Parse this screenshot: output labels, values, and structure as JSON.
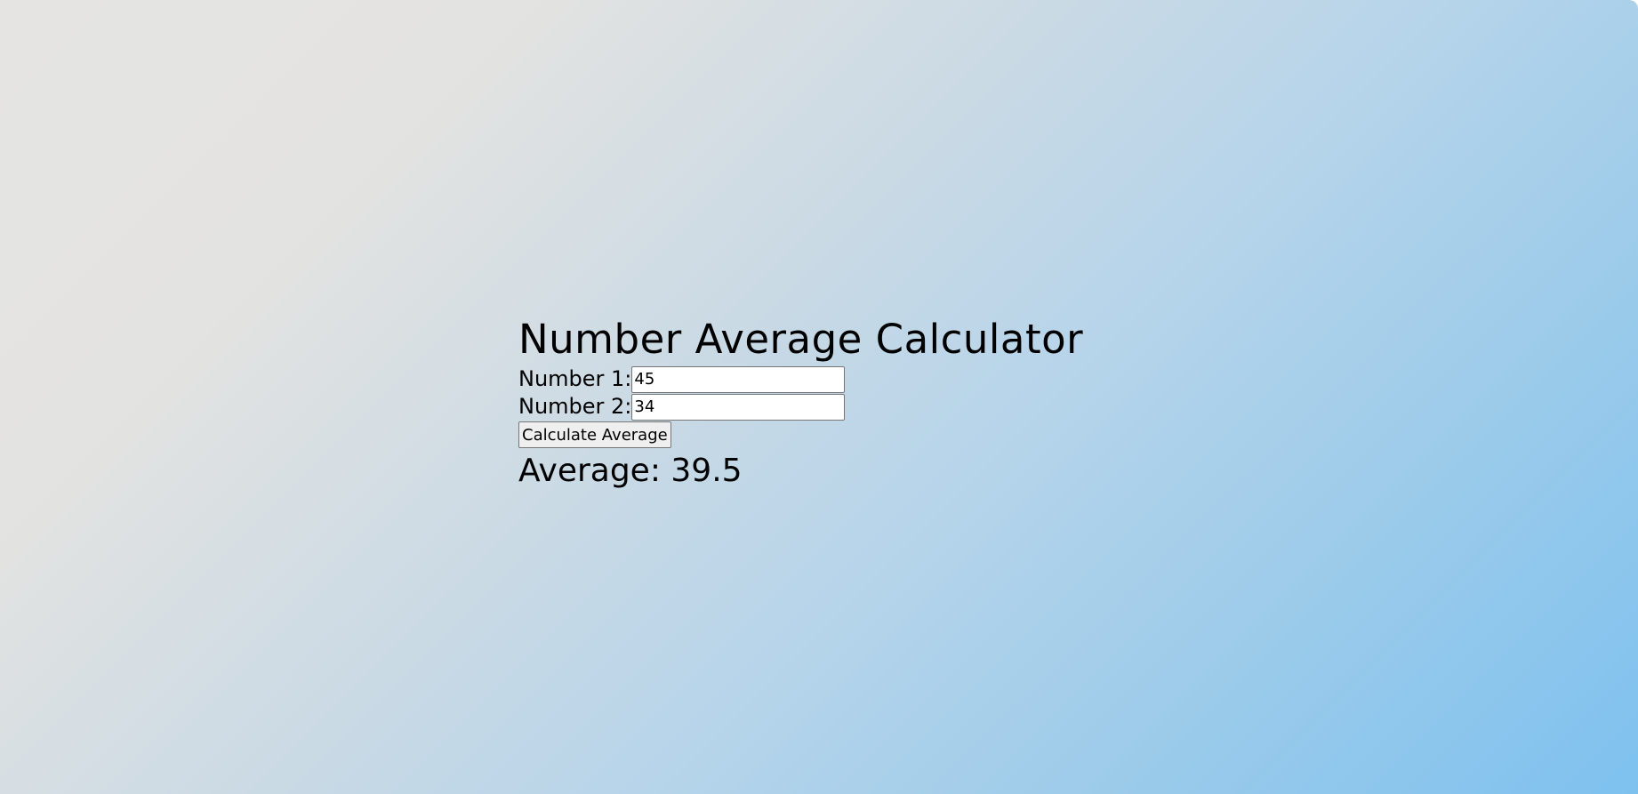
{
  "calculator": {
    "title": "Number Average Calculator",
    "number1": {
      "label": "Number 1:",
      "value": "45"
    },
    "number2": {
      "label": "Number 2:",
      "value": "34"
    },
    "button_label": "Calculate Average",
    "result_text": "Average: 39.5"
  },
  "colors": {
    "background_start": "#e5e4e2",
    "background_end": "#7ec1ef"
  }
}
